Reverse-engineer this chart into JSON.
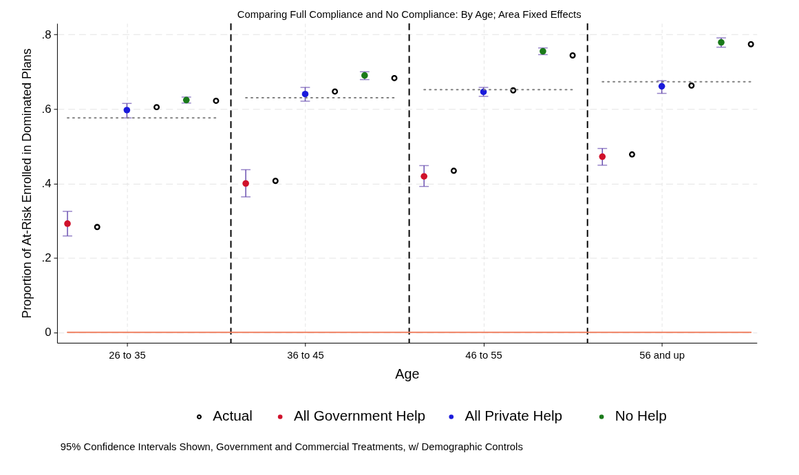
{
  "chart_data": {
    "type": "scatter",
    "title": "Comparing Full Compliance and No Compliance: By Age; Area Fixed Effects",
    "xlabel": "Age",
    "ylabel": "Proportion of At-Risk Enrolled in Dominated Plans",
    "categories": [
      null,
      null,
      "26 to 35",
      null,
      null,
      null,
      null,
      null,
      "36 to 45",
      null,
      null,
      null,
      null,
      null,
      "46 to 55",
      null,
      null,
      null,
      null,
      null,
      "56 and up",
      null,
      null,
      null
    ],
    "ylim": [
      -0.028,
      0.83
    ],
    "yticks": [
      0,
      {
        "value": 0.2,
        "label": ".2"
      },
      {
        "value": 0.4,
        "label": ".4"
      },
      {
        "value": 0.6,
        "label": ".6"
      },
      {
        "value": 0.8,
        "label": ".8"
      }
    ],
    "grid": true,
    "legend": "bottom",
    "marker": "circle",
    "series": [
      {
        "name": "Actual",
        "color": "#000000",
        "values": [
          null,
          0.283,
          null,
          0.605,
          null,
          0.622,
          null,
          0.407,
          null,
          0.647,
          null,
          0.683,
          null,
          0.434,
          null,
          0.65,
          null,
          0.744,
          null,
          0.478,
          null,
          0.663,
          null,
          0.774
        ]
      },
      {
        "name": "All Government Help",
        "color": "#d0112b",
        "values": [
          0.292,
          null,
          null,
          null,
          null,
          null,
          0.4,
          null,
          null,
          null,
          null,
          null,
          0.419,
          null,
          null,
          null,
          null,
          null,
          0.472,
          null,
          null,
          null,
          null,
          null
        ],
        "errors": [
          [
            0.259,
            0.325
          ],
          null,
          null,
          null,
          null,
          null,
          [
            0.364,
            0.437
          ],
          null,
          null,
          null,
          null,
          null,
          [
            0.392,
            0.448
          ],
          null,
          null,
          null,
          null,
          null,
          [
            0.449,
            0.494
          ],
          null,
          null,
          null,
          null,
          null
        ]
      },
      {
        "name": "All Private Help",
        "color": "#1a1adb",
        "values": [
          null,
          null,
          0.597,
          null,
          null,
          null,
          null,
          null,
          0.64,
          null,
          null,
          null,
          null,
          null,
          0.646,
          null,
          null,
          null,
          null,
          null,
          0.661,
          null,
          null,
          null
        ],
        "errors": [
          null,
          null,
          [
            0.576,
            0.615
          ],
          null,
          null,
          null,
          null,
          null,
          [
            0.621,
            0.658
          ],
          null,
          null,
          null,
          null,
          null,
          [
            0.634,
            0.658
          ],
          null,
          null,
          null,
          null,
          null,
          [
            0.642,
            0.676
          ],
          null,
          null,
          null
        ]
      },
      {
        "name": "No Help",
        "color": "#1a7a1a",
        "values": [
          null,
          null,
          null,
          null,
          0.624,
          null,
          null,
          null,
          null,
          null,
          0.69,
          null,
          null,
          null,
          null,
          null,
          0.755,
          null,
          null,
          null,
          null,
          null,
          0.779,
          null
        ],
        "errors": [
          null,
          null,
          null,
          null,
          [
            0.616,
            0.632
          ],
          null,
          null,
          null,
          null,
          null,
          [
            0.679,
            0.7
          ],
          null,
          null,
          null,
          null,
          null,
          [
            0.746,
            0.764
          ],
          null,
          null,
          null,
          null,
          null,
          [
            0.766,
            0.791
          ],
          null
        ]
      },
      {
        "type": "line",
        "marker": "none",
        "color": "#f08060",
        "line_style": "solid",
        "values": [
          0,
          0,
          0,
          0,
          0,
          0,
          0,
          0,
          0,
          0,
          0,
          0,
          0,
          0,
          0,
          0,
          0,
          0,
          0,
          0,
          0,
          0,
          0,
          0
        ]
      },
      {
        "type": "line",
        "marker": "none",
        "color": "#808080",
        "line_style": "dotted",
        "values": [
          0.576,
          0.576,
          0.576,
          0.576,
          0.576,
          0.576,
          null,
          null,
          null,
          null,
          null,
          null,
          null,
          null,
          null,
          null,
          null,
          null,
          null,
          null,
          null,
          null,
          null,
          null
        ]
      },
      {
        "type": "line",
        "marker": "none",
        "color": "#808080",
        "line_style": "dotted",
        "values": [
          null,
          null,
          null,
          null,
          null,
          null,
          0.63,
          0.63,
          0.63,
          0.63,
          0.63,
          0.63,
          null,
          null,
          null,
          null,
          null,
          null,
          null,
          null,
          null,
          null,
          null,
          null
        ]
      },
      {
        "type": "line",
        "marker": "none",
        "color": "#808080",
        "line_style": "dotted",
        "values": [
          null,
          null,
          null,
          null,
          null,
          null,
          null,
          null,
          null,
          null,
          null,
          null,
          0.652,
          0.652,
          0.652,
          0.652,
          0.652,
          0.652,
          null,
          null,
          null,
          null,
          null,
          null
        ]
      },
      {
        "type": "line",
        "marker": "none",
        "color": "#808080",
        "line_style": "dotted",
        "values": [
          null,
          null,
          null,
          null,
          null,
          null,
          null,
          null,
          null,
          null,
          null,
          null,
          null,
          null,
          null,
          null,
          null,
          null,
          0.673,
          0.673,
          0.673,
          0.673,
          0.673,
          0.673
        ]
      }
    ],
    "annotations": [
      "95% Confidence Intervals Shown, Government and Commercial Treatments, w/ Demographic Controls"
    ]
  }
}
